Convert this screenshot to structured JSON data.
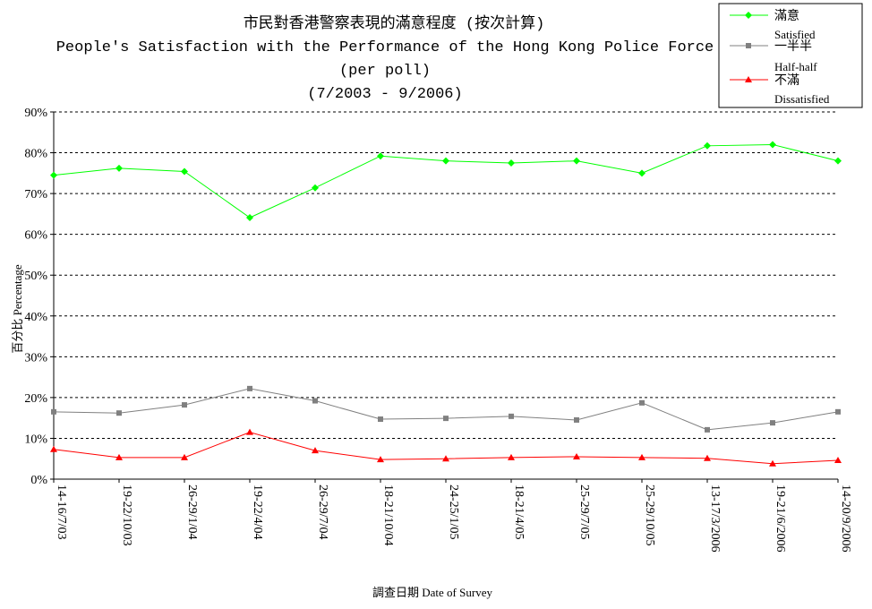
{
  "chart_data": {
    "type": "line",
    "title": "市民對香港警察表現的滿意程度 (按次計算)",
    "subtitle_lines": [
      "People's Satisfaction with the Performance of the Hong Kong Police Force",
      "(per poll)",
      "(7/2003 - 9/2006)"
    ],
    "xlabel": "調查日期 Date of Survey",
    "ylabel": "百分比 Percentage",
    "ylim": [
      0,
      90
    ],
    "yticks": [
      0,
      10,
      20,
      30,
      40,
      50,
      60,
      70,
      80,
      90
    ],
    "ytick_labels": [
      "0%",
      "10%",
      "20%",
      "30%",
      "40%",
      "50%",
      "60%",
      "70%",
      "80%",
      "90%"
    ],
    "grid": true,
    "legend_position": "top-right",
    "categories": [
      "14-16/7/03",
      "19-22/10/03",
      "26-29/1/04",
      "19-22/4/04",
      "26-29/7/04",
      "18-21/10/04",
      "24-25/1/05",
      "18-21/4/05",
      "25-29/7/05",
      "25-29/10/05",
      "13-17/3/2006",
      "19-21/6/2006",
      "14-20/9/2006"
    ],
    "series": [
      {
        "name": "滿意",
        "name_en": "Satisfied",
        "color": "#00ff00",
        "marker": "diamond",
        "values": [
          74.5,
          76.2,
          75.4,
          64.1,
          71.4,
          79.2,
          78.0,
          77.5,
          78.0,
          75.0,
          81.7,
          82.0,
          78.0
        ]
      },
      {
        "name": "一半半",
        "name_en": "Half-half",
        "color": "#808080",
        "marker": "square",
        "values": [
          16.5,
          16.2,
          18.2,
          22.2,
          19.2,
          14.7,
          14.9,
          15.4,
          14.5,
          18.7,
          12.1,
          13.8,
          16.5
        ]
      },
      {
        "name": "不滿",
        "name_en": "Dissatisfied",
        "color": "#ff0000",
        "marker": "triangle",
        "values": [
          7.3,
          5.3,
          5.3,
          11.5,
          7.0,
          4.8,
          5.0,
          5.3,
          5.5,
          5.3,
          5.1,
          3.8,
          4.6
        ]
      }
    ]
  }
}
